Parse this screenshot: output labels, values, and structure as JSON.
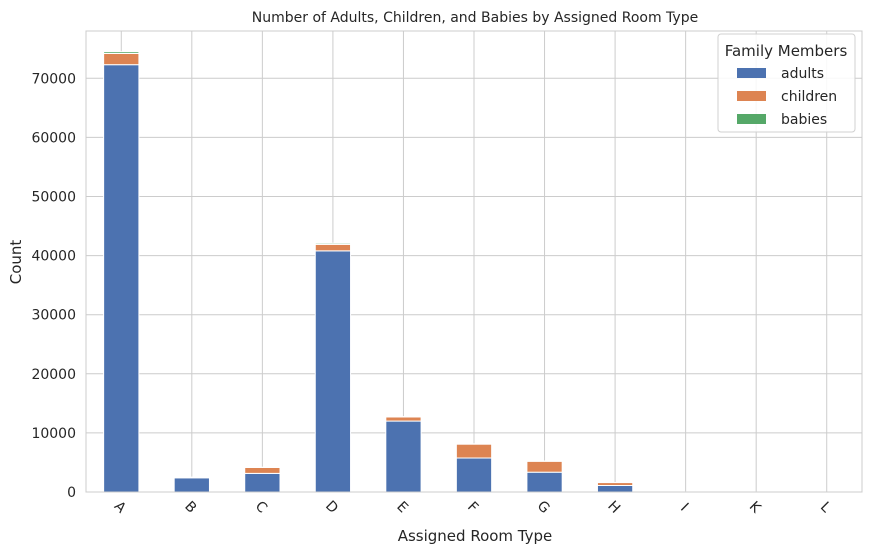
{
  "chart_data": {
    "type": "bar",
    "stacked": true,
    "title": "Number of Adults, Children, and Babies by Assigned Room Type",
    "xlabel": "Assigned Room Type",
    "ylabel": "Count",
    "categories": [
      "A",
      "B",
      "C",
      "D",
      "E",
      "F",
      "G",
      "H",
      "I",
      "K",
      "L"
    ],
    "series": [
      {
        "name": "adults",
        "color": "#4c72b0",
        "values": [
          72300,
          2400,
          3150,
          40800,
          12000,
          5750,
          3350,
          1100,
          20,
          15,
          5
        ]
      },
      {
        "name": "children",
        "color": "#dd8452",
        "values": [
          1900,
          100,
          1000,
          1100,
          700,
          2350,
          1850,
          500,
          0,
          0,
          0
        ]
      },
      {
        "name": "babies",
        "color": "#55a868",
        "values": [
          300,
          10,
          50,
          200,
          60,
          60,
          40,
          10,
          0,
          0,
          0
        ]
      }
    ],
    "ylim": [
      0,
      78000
    ],
    "yticks": [
      0,
      10000,
      20000,
      30000,
      40000,
      50000,
      60000,
      70000
    ],
    "grid": true,
    "legend": {
      "title": "Family Members",
      "position": "top-right"
    }
  }
}
